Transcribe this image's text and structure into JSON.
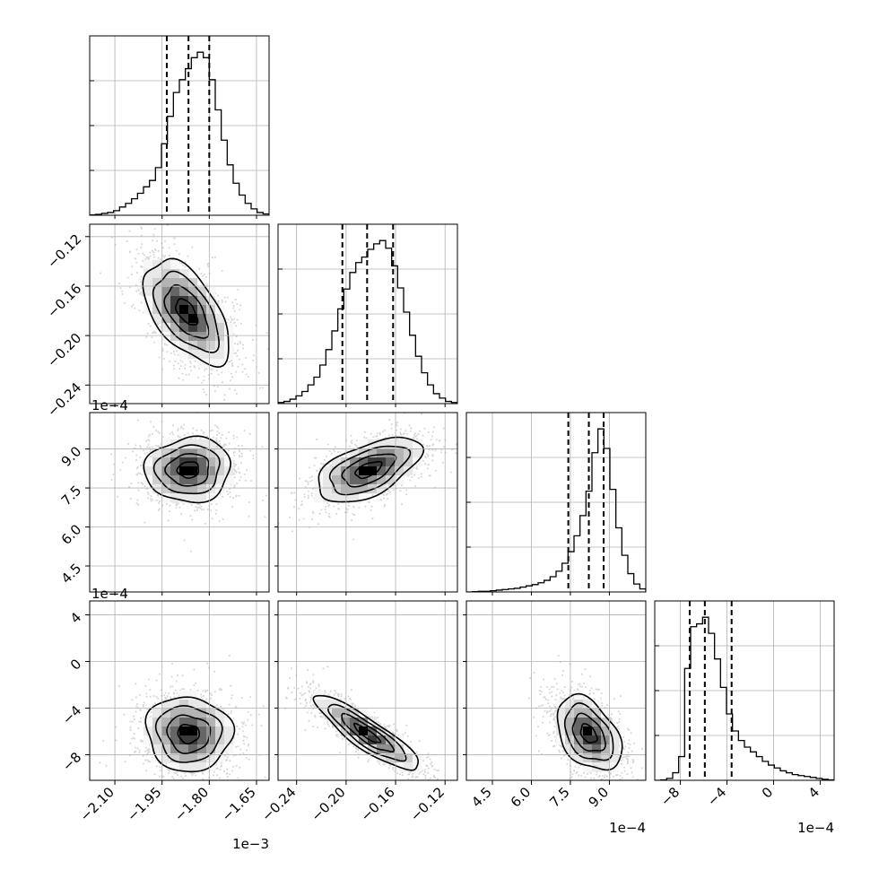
{
  "chart_data": {
    "type": "corner",
    "parameters": [
      {
        "range": [
          -2.18,
          -1.61
        ],
        "ticks": [
          -2.1,
          -1.95,
          -1.8,
          -1.65
        ],
        "tick_labels": [
          "−2.10",
          "−1.95",
          "−1.80",
          "−1.65"
        ],
        "offset_label": "1e−3",
        "quantiles": [
          -1.935,
          -1.866,
          -1.8
        ],
        "hist_edges": [
          -2.18,
          -2.161,
          -2.142,
          -2.123,
          -2.104,
          -2.085,
          -2.066,
          -2.047,
          -2.028,
          -2.009,
          -1.99,
          -1.971,
          -1.952,
          -1.933,
          -1.914,
          -1.895,
          -1.876,
          -1.857,
          -1.838,
          -1.819,
          -1.8,
          -1.781,
          -1.762,
          -1.743,
          -1.724,
          -1.705,
          -1.686,
          -1.667,
          -1.648,
          -1.629,
          -1.61
        ],
        "hist_counts": [
          0.5,
          1,
          2,
          3,
          5,
          9,
          13,
          18,
          24,
          31,
          38,
          52,
          78,
          108,
          134,
          148,
          160,
          172,
          178,
          172,
          148,
          115,
          82,
          55,
          35,
          22,
          13,
          7,
          3,
          1.5
        ]
      },
      {
        "range": [
          -0.255,
          -0.11
        ],
        "ticks": [
          -0.24,
          -0.2,
          -0.16,
          -0.12
        ],
        "tick_labels": [
          "−0.24",
          "−0.20",
          "−0.16",
          "−0.12"
        ],
        "offset_label": "",
        "quantiles": [
          -0.203,
          -0.183,
          -0.162
        ],
        "hist_edges": [
          -0.255,
          -0.25017,
          -0.24533,
          -0.2405,
          -0.23567,
          -0.23083,
          -0.226,
          -0.22117,
          -0.21633,
          -0.2115,
          -0.20667,
          -0.20183,
          -0.197,
          -0.19217,
          -0.18733,
          -0.1825,
          -0.17767,
          -0.17283,
          -0.168,
          -0.16317,
          -0.15833,
          -0.1535,
          -0.14867,
          -0.14383,
          -0.139,
          -0.13417,
          -0.12933,
          -0.1245,
          -0.11967,
          -0.11483,
          -0.11
        ],
        "hist_counts": [
          1,
          2,
          4,
          7,
          11,
          17,
          24,
          35,
          49,
          66,
          86,
          104,
          119,
          128,
          133,
          140,
          145,
          148,
          141,
          125,
          105,
          83,
          62,
          43,
          28,
          17,
          9,
          5,
          2,
          1
        ]
      },
      {
        "range": [
          3.5,
          10.4
        ],
        "ticks": [
          4.5,
          6.0,
          7.5,
          9.0
        ],
        "tick_labels": [
          "4.5",
          "6.0",
          "7.5",
          "9.0"
        ],
        "offset_label": "1e−4",
        "quantiles": [
          7.42,
          8.21,
          8.78
        ],
        "hist_edges": [
          3.5,
          3.73,
          3.96,
          4.19,
          4.42,
          4.65,
          4.88,
          5.11,
          5.34,
          5.57,
          5.8,
          6.03,
          6.26,
          6.49,
          6.72,
          6.95,
          7.18,
          7.41,
          7.64,
          7.87,
          8.1,
          8.33,
          8.56,
          8.79,
          9.02,
          9.25,
          9.48,
          9.71,
          9.94,
          10.17,
          10.4
        ],
        "hist_counts": [
          0,
          0.5,
          1,
          1,
          2,
          3,
          4,
          5,
          6,
          8,
          10,
          12,
          15,
          19,
          25,
          34,
          47,
          66,
          92,
          125,
          165,
          228,
          267,
          235,
          168,
          105,
          60,
          30,
          13,
          5
        ]
      },
      {
        "range": [
          -10.2,
          5.2
        ],
        "ticks": [
          -8,
          -4,
          0,
          4
        ],
        "tick_labels": [
          "−8",
          "−4",
          "0",
          "4"
        ],
        "offset_label": "1e−4",
        "quantiles": [
          -7.2,
          -5.9,
          -3.6
        ],
        "hist_edges": [
          -10.2,
          -9.687,
          -9.173,
          -8.66,
          -8.147,
          -7.633,
          -7.12,
          -6.607,
          -6.093,
          -5.58,
          -5.067,
          -4.553,
          -4.04,
          -3.527,
          -3.013,
          -2.5,
          -1.987,
          -1.473,
          -0.96,
          -0.447,
          0.067,
          0.58,
          1.093,
          1.607,
          2.12,
          2.633,
          3.147,
          3.66,
          4.173,
          4.687,
          5.2
        ],
        "hist_counts": [
          0,
          0.5,
          2,
          8,
          25,
          118,
          162,
          165,
          172,
          155,
          128,
          98,
          70,
          52,
          42,
          35,
          30,
          25,
          20,
          16,
          13,
          10,
          8,
          6,
          5,
          4,
          3,
          2,
          1,
          0.5
        ]
      }
    ],
    "pairs": [
      {
        "row": 1,
        "col": 0,
        "mean": [
          -1.866,
          -0.181
        ],
        "sigma": [
          0.068,
          0.021
        ],
        "rho": -0.55,
        "shift": [
          -0.006,
          0.0
        ]
      },
      {
        "row": 2,
        "col": 0,
        "mean": [
          -1.866,
          8.2
        ],
        "sigma": [
          0.068,
          0.62
        ],
        "rho": 0.05,
        "shift": [
          0.0,
          0.0
        ]
      },
      {
        "row": 2,
        "col": 1,
        "mean": [
          -0.182,
          8.2
        ],
        "sigma": [
          0.021,
          0.62
        ],
        "rho": 0.55,
        "shift": [
          0.0,
          0.0
        ]
      },
      {
        "row": 3,
        "col": 0,
        "mean": [
          -1.866,
          -6.2
        ],
        "sigma": [
          0.068,
          1.6
        ],
        "rho": -0.05,
        "shift": [
          0.0,
          0.0
        ]
      },
      {
        "row": 3,
        "col": 1,
        "mean": [
          -0.183,
          -6.2
        ],
        "sigma": [
          0.021,
          1.6
        ],
        "rho": -0.88,
        "shift": [
          0.0,
          0.0
        ]
      },
      {
        "row": 3,
        "col": 2,
        "mean": [
          8.2,
          -6.2
        ],
        "sigma": [
          0.62,
          1.6
        ],
        "rho": -0.4,
        "shift": [
          0.0,
          0.0
        ]
      }
    ],
    "contour_levels_sigma": [
      0.5,
      1.0,
      1.5,
      2.0
    ],
    "grid": true
  }
}
